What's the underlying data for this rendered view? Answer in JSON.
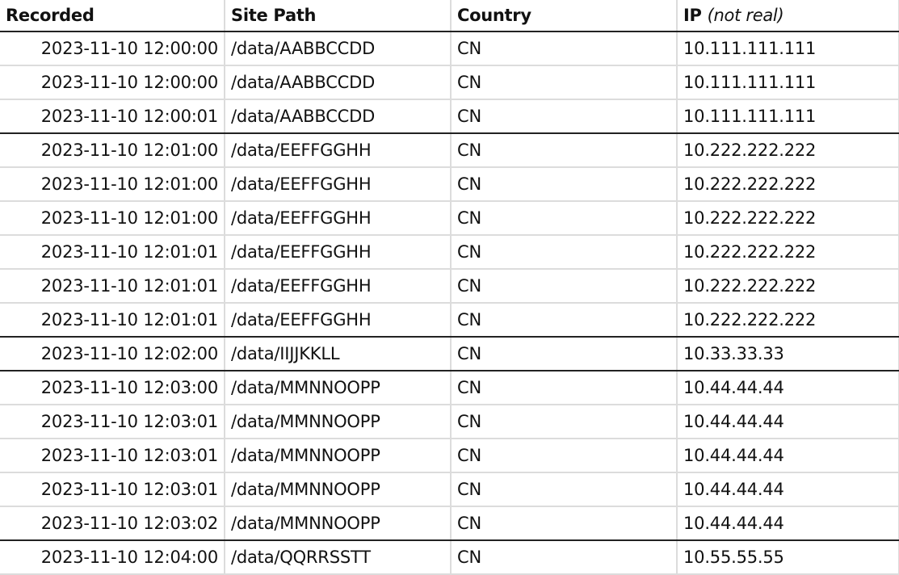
{
  "header": {
    "recorded": "Recorded",
    "site_path": "Site Path",
    "country": "Country",
    "ip": "IP",
    "ip_note": "(not real)"
  },
  "rows": [
    {
      "recorded": "2023-11-10 12:00:00",
      "path": "/data/AABBCCDD",
      "country": "CN",
      "ip": "10.111.111.111",
      "group_end": false
    },
    {
      "recorded": "2023-11-10 12:00:00",
      "path": "/data/AABBCCDD",
      "country": "CN",
      "ip": "10.111.111.111",
      "group_end": false
    },
    {
      "recorded": "2023-11-10 12:00:01",
      "path": "/data/AABBCCDD",
      "country": "CN",
      "ip": "10.111.111.111",
      "group_end": true
    },
    {
      "recorded": "2023-11-10 12:01:00",
      "path": "/data/EEFFGGHH",
      "country": "CN",
      "ip": "10.222.222.222",
      "group_end": false
    },
    {
      "recorded": "2023-11-10 12:01:00",
      "path": "/data/EEFFGGHH",
      "country": "CN",
      "ip": "10.222.222.222",
      "group_end": false
    },
    {
      "recorded": "2023-11-10 12:01:00",
      "path": "/data/EEFFGGHH",
      "country": "CN",
      "ip": "10.222.222.222",
      "group_end": false
    },
    {
      "recorded": "2023-11-10 12:01:01",
      "path": "/data/EEFFGGHH",
      "country": "CN",
      "ip": "10.222.222.222",
      "group_end": false
    },
    {
      "recorded": "2023-11-10 12:01:01",
      "path": "/data/EEFFGGHH",
      "country": "CN",
      "ip": "10.222.222.222",
      "group_end": false
    },
    {
      "recorded": "2023-11-10 12:01:01",
      "path": "/data/EEFFGGHH",
      "country": "CN",
      "ip": "10.222.222.222",
      "group_end": true
    },
    {
      "recorded": "2023-11-10 12:02:00",
      "path": "/data/IIJJKKLL",
      "country": "CN",
      "ip": "10.33.33.33",
      "group_end": true
    },
    {
      "recorded": "2023-11-10 12:03:00",
      "path": "/data/MMNNOOPP",
      "country": "CN",
      "ip": "10.44.44.44",
      "group_end": false
    },
    {
      "recorded": "2023-11-10 12:03:01",
      "path": "/data/MMNNOOPP",
      "country": "CN",
      "ip": "10.44.44.44",
      "group_end": false
    },
    {
      "recorded": "2023-11-10 12:03:01",
      "path": "/data/MMNNOOPP",
      "country": "CN",
      "ip": "10.44.44.44",
      "group_end": false
    },
    {
      "recorded": "2023-11-10 12:03:01",
      "path": "/data/MMNNOOPP",
      "country": "CN",
      "ip": "10.44.44.44",
      "group_end": false
    },
    {
      "recorded": "2023-11-10 12:03:02",
      "path": "/data/MMNNOOPP",
      "country": "CN",
      "ip": "10.44.44.44",
      "group_end": true
    },
    {
      "recorded": "2023-11-10 12:04:00",
      "path": "/data/QQRRSSTT",
      "country": "CN",
      "ip": "10.55.55.55",
      "group_end": false
    }
  ]
}
